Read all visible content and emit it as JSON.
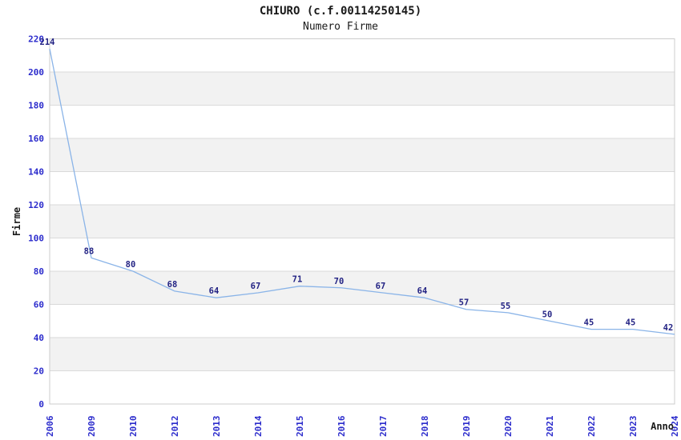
{
  "header": {
    "title": "CHIURO (c.f.00114250145)",
    "subtitle": "Numero Firme"
  },
  "chart_data": {
    "type": "line",
    "title": "CHIURO (c.f.00114250145)",
    "subtitle": "Numero Firme",
    "categories": [
      "2006",
      "2009",
      "2010",
      "2012",
      "2013",
      "2014",
      "2015",
      "2016",
      "2017",
      "2018",
      "2019",
      "2020",
      "2021",
      "2022",
      "2023",
      "2024"
    ],
    "values": [
      214,
      88,
      80,
      68,
      64,
      67,
      71,
      70,
      67,
      64,
      57,
      55,
      50,
      45,
      45,
      42
    ],
    "xlabel": "Anno",
    "ylabel": "Firme",
    "ylim": [
      0,
      220
    ],
    "ytick_step": 20,
    "yticks": [
      0,
      20,
      40,
      60,
      80,
      100,
      120,
      140,
      160,
      180,
      200,
      220
    ],
    "grid": "horizontal",
    "legend_position": "none",
    "point_labels_visible": true,
    "colors": {
      "line": "#8ab4e8",
      "tick_label": "#2b2bcc",
      "point_label": "#232384",
      "band": "#f2f2f2",
      "gridline": "#dadada",
      "frame": "#cccccc",
      "text": "#1a1a1a",
      "background": "#ffffff"
    }
  }
}
